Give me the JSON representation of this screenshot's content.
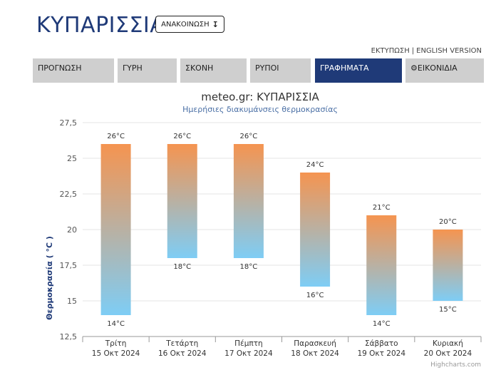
{
  "header": {
    "title": "ΚΥΠΑΡΙΣΣΙΑ",
    "announcement_label": "ΑΝΑΚΟΙΝΩΣΗ",
    "announcement_icon": "arrow-down-icon",
    "print_link": "ΕΚΤΥΠΩΣΗ",
    "separator": "|",
    "english_link": "ENGLISH VERSION"
  },
  "tabs": [
    {
      "label": "ΠΡΟΓΝΩΣΗ",
      "active": false
    },
    {
      "label": "ΓΥΡΗ",
      "active": false
    },
    {
      "label": "ΣΚΟΝΗ",
      "active": false
    },
    {
      "label": "ΡΥΠΟΙ",
      "active": false
    },
    {
      "label": "ΓΡΑΦΗΜΑΤΑ",
      "active": true
    },
    {
      "label": "ΕΙΚΟΝΙΔΙΑ",
      "active": false,
      "icon": "gear-icon"
    }
  ],
  "colors": {
    "brand": "#1f3a78",
    "tab_inactive": "#cfcfcf",
    "bar_top": "#f59450",
    "bar_bottom": "#7ecdf5"
  },
  "chart_data": {
    "type": "bar",
    "subtype": "column-range",
    "title": "meteo.gr: ΚΥΠΑΡΙΣΣΙΑ",
    "subtitle": "Ημερήσιες διακυμάνσεις θερμοκρασίας",
    "ylabel": "Θερμοκρασία ( °C )",
    "ylim": [
      12.5,
      27.5
    ],
    "yticks": [
      "12,5",
      "15",
      "17,5",
      "20",
      "22,5",
      "25",
      "27,5"
    ],
    "ytick_values": [
      12.5,
      15,
      17.5,
      20,
      22.5,
      25,
      27.5
    ],
    "grid": true,
    "categories": [
      {
        "day": "Τρίτη",
        "date": "15 Οκτ 2024"
      },
      {
        "day": "Τετάρτη",
        "date": "16 Οκτ 2024"
      },
      {
        "day": "Πέμπτη",
        "date": "17 Οκτ 2024"
      },
      {
        "day": "Παρασκευή",
        "date": "18 Οκτ 2024"
      },
      {
        "day": "Σάββατο",
        "date": "19 Οκτ 2024"
      },
      {
        "day": "Κυριακή",
        "date": "20 Οκτ 2024"
      }
    ],
    "series": [
      {
        "low": [
          14,
          18,
          18,
          16,
          14,
          15
        ],
        "high": [
          26,
          26,
          26,
          24,
          21,
          20
        ]
      }
    ],
    "low_labels": [
      "14°C",
      "18°C",
      "18°C",
      "16°C",
      "14°C",
      "15°C"
    ],
    "high_labels": [
      "26°C",
      "26°C",
      "26°C",
      "24°C",
      "21°C",
      "20°C"
    ],
    "credits": "Highcharts.com"
  }
}
